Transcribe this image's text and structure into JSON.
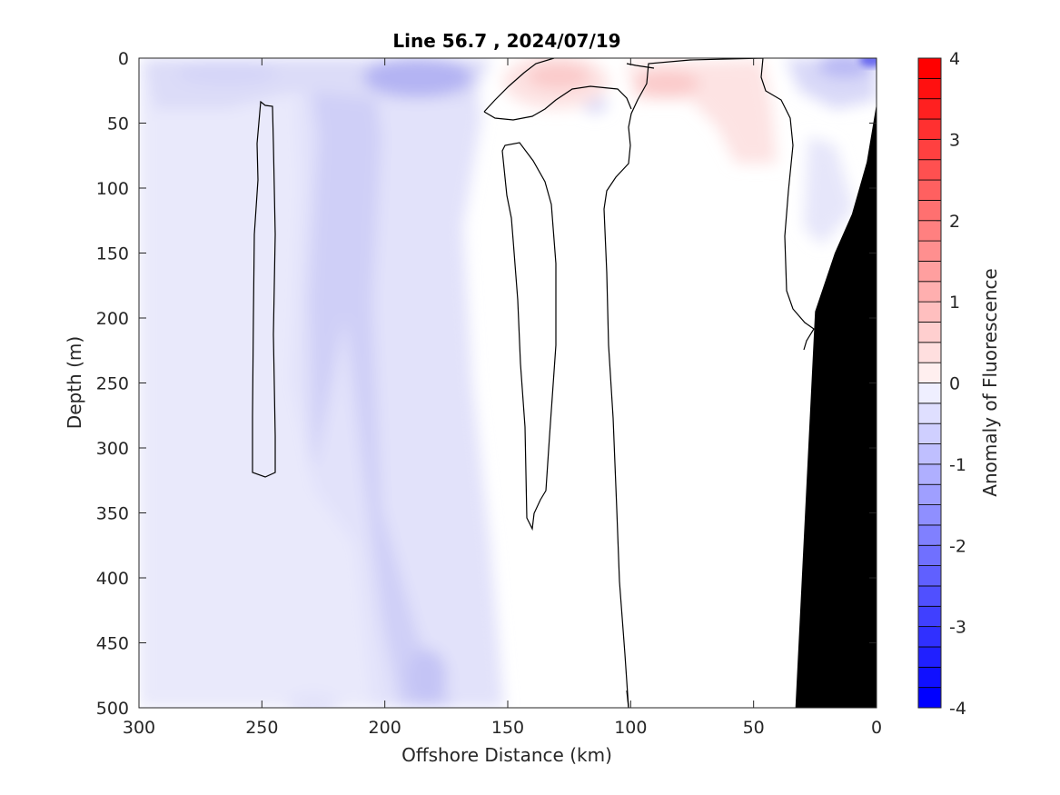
{
  "chart_data": {
    "type": "heatmap",
    "title": "Line 56.7 , 2024/07/19",
    "xlabel": "Offshore Distance (km)",
    "ylabel": "Depth (m)",
    "colorbar_label": "Anomaly of Fluorescence",
    "xlim": [
      300,
      0
    ],
    "ylim": [
      0,
      500
    ],
    "clim": [
      -4,
      4
    ],
    "x_ticks": [
      300,
      250,
      200,
      150,
      100,
      50,
      0
    ],
    "y_ticks": [
      0,
      50,
      100,
      150,
      200,
      250,
      300,
      350,
      400,
      450,
      500
    ],
    "colorbar_ticks": [
      -4,
      -3,
      -2,
      -1,
      0,
      1,
      2,
      3,
      4
    ],
    "colorbar_levels": 32,
    "colormap": {
      "negative": "#0000ff",
      "zero": "#ffffff",
      "positive": "#ff0000"
    },
    "seafloor_color": "#000000",
    "grid": false,
    "features": [
      {
        "name": "negative surface band",
        "x": [
          300,
          0
        ],
        "depth": [
          0,
          50
        ],
        "value": -0.5
      },
      {
        "name": "offshore negative column",
        "x": [
          300,
          165
        ],
        "depth": [
          0,
          500
        ],
        "value": -0.3
      },
      {
        "name": "negative core",
        "x": [
          235,
          185
        ],
        "depth": [
          0,
          330
        ],
        "value": -0.7
      },
      {
        "name": "surface negative patch",
        "x": [
          200,
          170
        ],
        "depth": [
          5,
          30
        ],
        "value": -1.3
      },
      {
        "name": "positive near-surface patch",
        "x": [
          150,
          110
        ],
        "depth": [
          0,
          45
        ],
        "value": 0.8
      },
      {
        "name": "positive near-surface patch",
        "x": [
          100,
          40
        ],
        "depth": [
          0,
          80
        ],
        "value": 0.6
      },
      {
        "name": "nearshore negative patch",
        "x": [
          45,
          0
        ],
        "depth": [
          0,
          30
        ],
        "value": -1.2
      }
    ],
    "seafloor": {
      "x": [
        0,
        4,
        10,
        17,
        25,
        33
      ],
      "depth": [
        35,
        80,
        120,
        150,
        195,
        500
      ]
    }
  }
}
